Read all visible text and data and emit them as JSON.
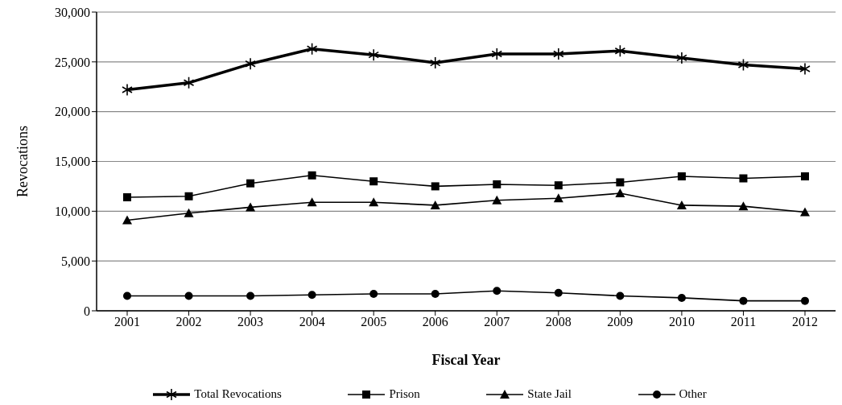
{
  "chart_data": {
    "type": "line",
    "xlabel": "Fiscal Year",
    "ylabel": "Revocations",
    "categories": [
      "2001",
      "2002",
      "2003",
      "2004",
      "2005",
      "2006",
      "2007",
      "2008",
      "2009",
      "2010",
      "2011",
      "2012"
    ],
    "series": [
      {
        "name": "Total Revocations",
        "color": "#000000",
        "marker": "cross",
        "values": [
          22200,
          22900,
          24800,
          26300,
          25700,
          24900,
          25800,
          25800,
          26100,
          25400,
          24700,
          24300
        ]
      },
      {
        "name": "Prison",
        "color": "#000000",
        "marker": "square",
        "values": [
          11400,
          11500,
          12800,
          13600,
          13000,
          12500,
          12700,
          12600,
          12900,
          13500,
          13300,
          13500
        ]
      },
      {
        "name": "State Jail",
        "color": "#000000",
        "marker": "triangle",
        "values": [
          9100,
          9800,
          10400,
          10900,
          10900,
          10600,
          11100,
          11300,
          11800,
          10600,
          10500,
          9900
        ]
      },
      {
        "name": "Other",
        "color": "#000000",
        "marker": "circle",
        "values": [
          1500,
          1500,
          1500,
          1600,
          1700,
          1700,
          2000,
          1800,
          1500,
          1300,
          1000,
          1000
        ]
      }
    ],
    "ylim": [
      0,
      30000
    ],
    "yticks": [
      0,
      {
        "value": 5000,
        "label": "5,000"
      },
      {
        "value": 10000,
        "label": "10,000"
      },
      {
        "value": 15000,
        "label": "15,000"
      },
      {
        "value": 20000,
        "label": "20,000"
      },
      {
        "value": 25000,
        "label": "25,000"
      },
      {
        "value": 30000,
        "label": "30,000"
      }
    ],
    "grid": "y",
    "legend": "bottom"
  }
}
